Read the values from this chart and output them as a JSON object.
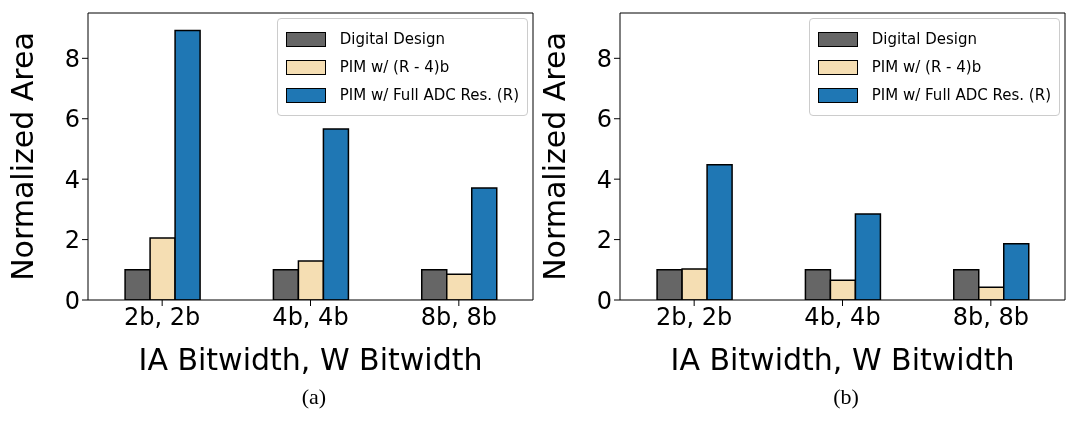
{
  "chart_data": [
    {
      "type": "bar",
      "categories": [
        "2b, 2b",
        "4b, 4b",
        "8b, 8b"
      ],
      "xlabel": "IA Bitwidth, W Bitwidth",
      "ylabel": "Normalized Area",
      "ylim": [
        0,
        9.5
      ],
      "yticks": [
        0,
        2,
        4,
        6,
        8
      ],
      "legend": "top right",
      "grid": false,
      "annotations": [
        "(a)"
      ],
      "series": [
        {
          "name": "Digital Design",
          "color": "#666666",
          "values": [
            1,
            1,
            1
          ]
        },
        {
          "name": "PIM w/ (R - 4)b",
          "color": "#f5deb3",
          "values": [
            2.05,
            1.29,
            0.85
          ]
        },
        {
          "name": "PIM w/ Full ADC Res. (R)",
          "color": "#1f77b4",
          "values": [
            8.92,
            5.66,
            3.71
          ]
        }
      ]
    },
    {
      "type": "bar",
      "categories": [
        "2b, 2b",
        "4b, 4b",
        "8b, 8b"
      ],
      "xlabel": "IA Bitwidth, W Bitwidth",
      "ylabel": "Normalized Area",
      "ylim": [
        0,
        9.5
      ],
      "yticks": [
        0,
        2,
        4,
        6,
        8
      ],
      "legend": "top right",
      "grid": false,
      "annotations": [
        "(b)"
      ],
      "series": [
        {
          "name": "Digital Design",
          "color": "#666666",
          "values": [
            1,
            1,
            1
          ]
        },
        {
          "name": "PIM w/ (R - 4)b",
          "color": "#f5deb3",
          "values": [
            1.03,
            0.65,
            0.42
          ]
        },
        {
          "name": "PIM w/ Full ADC Res. (R)",
          "color": "#1f77b4",
          "values": [
            4.48,
            2.85,
            1.86
          ]
        }
      ]
    }
  ]
}
